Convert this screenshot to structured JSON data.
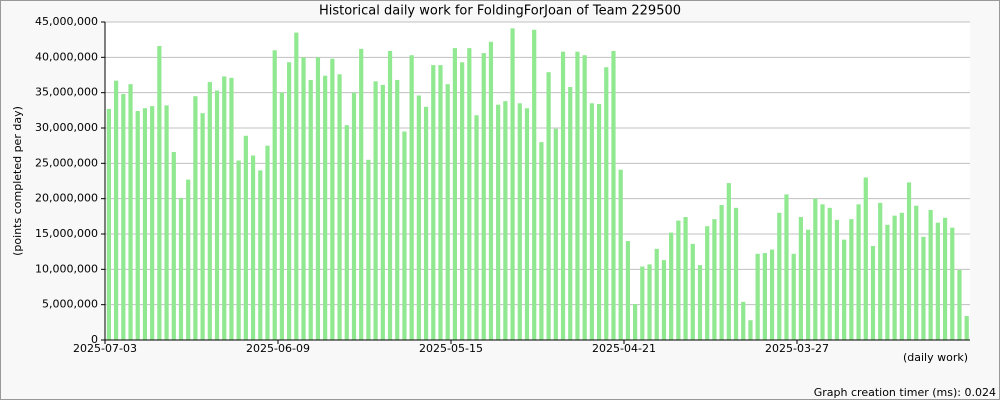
{
  "chart_data": {
    "type": "bar",
    "title": "Historical daily work for FoldingForJoan of Team 229500",
    "y_label": "(points completed per day)",
    "x_label": "(daily work)",
    "footer": "Graph creation timer (ms): 0.024",
    "color": "#90e890",
    "grid": true,
    "ylim": [
      0,
      45000000
    ],
    "yticks": [
      0,
      {
        "value": 5000000,
        "label": "5,000,000"
      },
      {
        "value": 10000000,
        "label": "10,000,000"
      },
      {
        "value": 15000000,
        "label": "15,000,000"
      },
      {
        "value": 20000000,
        "label": "20,000,000"
      },
      {
        "value": 25000000,
        "label": "25,000,000"
      },
      {
        "value": 30000000,
        "label": "30,000,000"
      },
      {
        "value": 35000000,
        "label": "35,000,000"
      },
      {
        "value": 40000000,
        "label": "40,000,000"
      },
      {
        "value": 45000000,
        "label": "45,000,000"
      }
    ],
    "categories": [
      "2025-07-03",
      null,
      null,
      null,
      null,
      null,
      null,
      null,
      null,
      null,
      null,
      null,
      null,
      null,
      null,
      null,
      null,
      null,
      null,
      null,
      null,
      null,
      null,
      null,
      "2025-06-09",
      null,
      null,
      null,
      null,
      null,
      null,
      null,
      null,
      null,
      null,
      null,
      null,
      null,
      null,
      null,
      null,
      null,
      null,
      null,
      null,
      null,
      null,
      null,
      "2025-05-15",
      null,
      null,
      null,
      null,
      null,
      null,
      null,
      null,
      null,
      null,
      null,
      null,
      null,
      null,
      null,
      null,
      null,
      null,
      null,
      null,
      null,
      null,
      null,
      "2025-04-21",
      null,
      null,
      null,
      null,
      null,
      null,
      null,
      null,
      null,
      null,
      null,
      null,
      null,
      null,
      null,
      null,
      null,
      null,
      null,
      null,
      null,
      null,
      null,
      "2025-03-27",
      null,
      null,
      null,
      null,
      null,
      null,
      null,
      null,
      null,
      null,
      null,
      null,
      null,
      null,
      null,
      null,
      null,
      null,
      null,
      null,
      null,
      null,
      null
    ],
    "values": [
      32700000,
      36700000,
      34800000,
      36200000,
      32400000,
      32800000,
      33100000,
      41600000,
      33200000,
      26600000,
      20100000,
      22700000,
      34500000,
      32100000,
      36500000,
      35300000,
      37300000,
      37100000,
      25400000,
      28900000,
      26100000,
      24000000,
      27500000,
      41000000,
      35000000,
      39300000,
      43500000,
      40000000,
      36800000,
      40000000,
      37400000,
      39800000,
      37600000,
      30400000,
      35000000,
      41200000,
      25500000,
      36600000,
      36100000,
      40900000,
      36800000,
      29500000,
      40300000,
      34600000,
      33000000,
      38900000,
      38900000,
      36200000,
      41300000,
      39300000,
      41300000,
      31800000,
      40600000,
      42200000,
      33300000,
      33800000,
      44100000,
      33500000,
      32800000,
      43900000,
      28000000,
      37900000,
      29900000,
      40800000,
      35800000,
      40800000,
      40300000,
      33500000,
      33400000,
      38600000,
      40900000,
      24100000,
      14000000,
      5100000,
      10400000,
      10700000,
      12900000,
      11300000,
      15200000,
      16900000,
      17400000,
      13600000,
      10600000,
      16100000,
      17100000,
      19100000,
      22200000,
      18700000,
      5400000,
      2800000,
      12200000,
      12300000,
      12800000,
      18000000,
      20600000,
      12200000,
      17400000,
      15600000,
      20000000,
      19200000,
      18700000,
      17000000,
      14200000,
      17100000,
      19200000,
      23000000,
      13300000,
      19400000,
      16300000,
      17600000,
      18000000,
      22300000,
      19000000,
      14600000,
      18400000,
      16600000,
      17300000,
      15900000,
      9900000,
      3400000
    ]
  }
}
